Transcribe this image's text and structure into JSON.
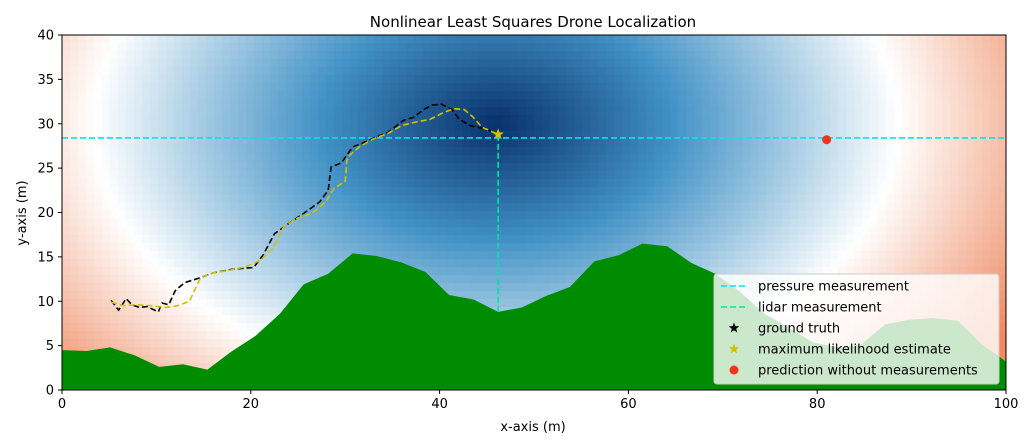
{
  "chart_data": {
    "type": "line",
    "title": "Nonlinear Least Squares Drone Localization",
    "xlabel": "x-axis (m)",
    "ylabel": "y-axis (m)",
    "xlim": [
      0,
      100
    ],
    "ylim": [
      0,
      40
    ],
    "xticks": [
      0,
      20,
      40,
      60,
      80,
      100
    ],
    "yticks": [
      0,
      5,
      10,
      15,
      20,
      25,
      30,
      35,
      40
    ],
    "grid": false,
    "legend_position": "lower right",
    "background": {
      "type": "likelihood-contour",
      "peak": [
        46,
        30
      ],
      "colors": {
        "high": "#08306b",
        "mid": "#4292c6",
        "low": "#ffffff",
        "far": "#ef8a62"
      }
    },
    "terrain": {
      "color": "#008c00",
      "x": [
        0,
        2.6,
        5.1,
        7.7,
        10.3,
        12.8,
        15.4,
        17.9,
        20.5,
        23.1,
        25.6,
        28.2,
        30.8,
        33.3,
        35.9,
        38.5,
        41,
        43.6,
        46.2,
        48.7,
        51.3,
        53.8,
        56.4,
        59,
        61.5,
        64.1,
        66.7,
        69.2,
        71.8,
        74.4,
        76.9,
        79.5,
        82.1,
        84.6,
        87.2,
        89.7,
        92.3,
        94.9,
        97.4,
        100
      ],
      "y": [
        4.5,
        4.4,
        4.8,
        3.9,
        2.6,
        2.9,
        2.3,
        4.3,
        6.1,
        8.6,
        11.9,
        13.1,
        15.4,
        15.1,
        14.4,
        13.3,
        10.7,
        10.2,
        8.8,
        9.3,
        10.6,
        11.6,
        14.5,
        15.2,
        16.5,
        16.2,
        14.3,
        13.1,
        11.1,
        8.6,
        7.1,
        5.4,
        4.8,
        5.1,
        7.4,
        7.9,
        8.1,
        7.8,
        5.2,
        3.2
      ]
    },
    "series": [
      {
        "name": "pressure measurement",
        "style": "dashed",
        "color": "#00e5ee",
        "x": [
          0,
          100
        ],
        "y": [
          28.4,
          28.4
        ]
      },
      {
        "name": "lidar measurement",
        "style": "dashed",
        "color": "#00e6a0",
        "x": [
          46.2,
          46.2
        ],
        "y": [
          8.8,
          28.4
        ]
      },
      {
        "name": "ground truth",
        "style": "dashed",
        "color": "#000000",
        "x": [
          5.2,
          6,
          6.8,
          7.4,
          8.2,
          9,
          10.2,
          10.6,
          11.3,
          12,
          13,
          14.5,
          16,
          18,
          20.3,
          21.3,
          22.5,
          24.2,
          25.6,
          27.3,
          28.2,
          28.5,
          29.6,
          30.8,
          31.8,
          33,
          34.5,
          36.2,
          37.2,
          38.3,
          39.2,
          40.2,
          41.3,
          42.1,
          43.2,
          44.5,
          46.2
        ],
        "y": [
          10.1,
          9.0,
          10.3,
          9.6,
          9.3,
          9.4,
          8.8,
          9.8,
          9.6,
          11.2,
          12.1,
          12.6,
          13.2,
          13.6,
          13.8,
          15.2,
          17.6,
          18.9,
          19.9,
          21.2,
          22.5,
          25.1,
          25.6,
          27.4,
          27.8,
          28.4,
          29.0,
          30.4,
          30.7,
          31.6,
          32.1,
          32.2,
          31.6,
          30.5,
          29.8,
          29.5,
          28.9
        ]
      },
      {
        "name": "maximum likelihood estimate",
        "style": "dashed",
        "color": "#cfc300",
        "x": [
          5.2,
          6.5,
          8,
          9.5,
          11,
          12.3,
          13.5,
          14.7,
          16,
          17.8,
          19.5,
          21,
          22.3,
          23.5,
          25,
          26.5,
          28,
          28.8,
          30,
          30.2,
          31.5,
          33,
          34.5,
          36,
          37.5,
          39,
          40.3,
          41.5,
          42.6,
          43.5,
          44.5,
          46.2
        ],
        "y": [
          9.9,
          9.5,
          9.6,
          9.5,
          9.3,
          9.5,
          10.0,
          12.7,
          13.2,
          13.5,
          13.9,
          14.6,
          15.9,
          18.4,
          19.4,
          19.9,
          21.3,
          22.7,
          23.5,
          26.2,
          27.4,
          28.3,
          28.9,
          29.8,
          30.2,
          30.5,
          31.2,
          31.7,
          31.6,
          30.8,
          29.6,
          28.8
        ]
      }
    ],
    "markers": [
      {
        "name": "ground truth",
        "shape": "star",
        "color": "#000000",
        "x": [],
        "y": []
      },
      {
        "name": "maximum likelihood estimate",
        "shape": "star",
        "color": "#cfc300",
        "x": [
          46.2
        ],
        "y": [
          28.8
        ]
      },
      {
        "name": "prediction without measurements",
        "shape": "circle",
        "color": "#ee3520",
        "x": [
          81.0
        ],
        "y": [
          28.2
        ]
      }
    ],
    "legend": [
      {
        "label": "pressure measurement",
        "kind": "line",
        "color": "#00e5ee"
      },
      {
        "label": "lidar measurement",
        "kind": "line",
        "color": "#00e6a0"
      },
      {
        "label": "ground truth",
        "kind": "star",
        "color": "#000000"
      },
      {
        "label": "maximum likelihood estimate",
        "kind": "star",
        "color": "#cfc300"
      },
      {
        "label": "prediction without measurements",
        "kind": "circle",
        "color": "#ee3520"
      }
    ]
  }
}
